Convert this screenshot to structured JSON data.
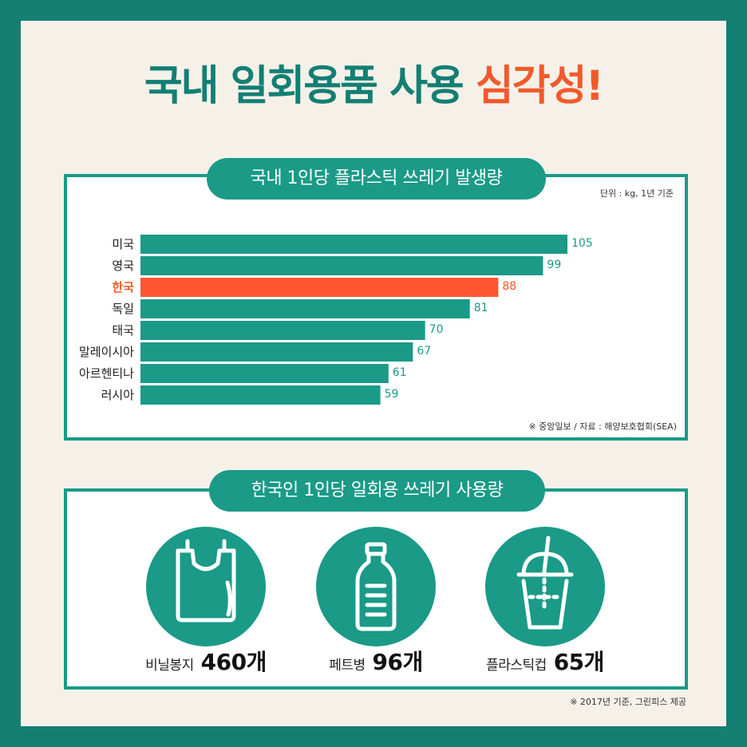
{
  "title": {
    "prefix": "국내 일회용품 사용",
    "highlight": "심각성!"
  },
  "section1": {
    "label": "국내 1인당 플라스틱 쓰레기 발생량",
    "unit_note": "단위 : kg, 1년 기준",
    "source_note": "※ 중앙일보 / 자료 : 해양보호협회(SEA)"
  },
  "chart_data": {
    "type": "bar",
    "orientation": "horizontal",
    "categories": [
      "미국",
      "영국",
      "한국",
      "독일",
      "태국",
      "말레이시아",
      "아르헨티나",
      "러시아"
    ],
    "values": [
      105,
      99,
      88,
      81,
      70,
      67,
      61,
      59
    ],
    "highlight_category": "한국",
    "title": "국내 1인당 플라스틱 쓰레기 발생량",
    "unit": "단위 : kg, 1년 기준",
    "xlim": [
      0,
      105
    ],
    "grid": false,
    "colors": {
      "bar": "#1a9a87",
      "highlight": "#ff5533",
      "value_text": "#1a9a87",
      "highlight_value_text": "#f05a2b"
    }
  },
  "section2": {
    "label": "한국인 1인당 일회용 쓰레기 사용량",
    "items": [
      {
        "icon": "plastic-bag-icon",
        "name": "비닐봉지",
        "amount": "460개"
      },
      {
        "icon": "plastic-bottle-icon",
        "name": "페트병",
        "amount": "96개"
      },
      {
        "icon": "plastic-cup-icon",
        "name": "플라스틱컵",
        "amount": "65개"
      }
    ],
    "footnote": "※ 2017년 기준, 그린피스 제공"
  },
  "colors": {
    "teal": "#1a9a87",
    "dark_teal": "#137f73",
    "accent": "#f05a2b",
    "background": "#f5f1e9"
  }
}
